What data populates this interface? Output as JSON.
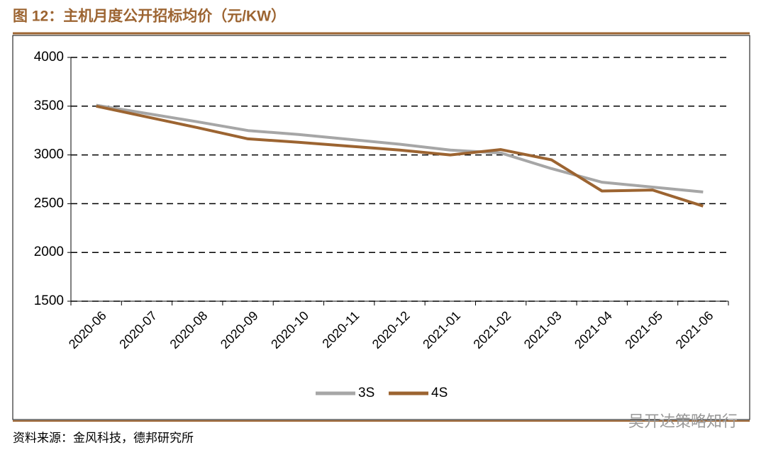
{
  "chart_data": {
    "type": "line",
    "title": "图 12：主机月度公开招标均价（元/KW）",
    "source": "资料来源：金风科技，德邦研究所",
    "watermark": "吴开达策略知行",
    "categories": [
      "2020-06",
      "2020-07",
      "2020-08",
      "2020-09",
      "2020-10",
      "2020-11",
      "2020-12",
      "2021-01",
      "2021-02",
      "2021-03",
      "2021-04",
      "2021-05",
      "2021-06"
    ],
    "series": [
      {
        "name": "3S",
        "color": "#a6a6a6",
        "values": [
          3510,
          3425,
          3340,
          3250,
          3210,
          3160,
          3110,
          3050,
          3020,
          2860,
          2720,
          2670,
          2620
        ]
      },
      {
        "name": "4S",
        "color": "#9c6431",
        "values": [
          3500,
          3390,
          3280,
          3165,
          3130,
          3090,
          3050,
          3000,
          3055,
          2950,
          2630,
          2640,
          2475
        ]
      }
    ],
    "ylim": [
      1500,
      4000
    ],
    "yticks": [
      1500,
      2000,
      2500,
      3000,
      3500,
      4000
    ],
    "grid": true,
    "legend": "bottom"
  }
}
